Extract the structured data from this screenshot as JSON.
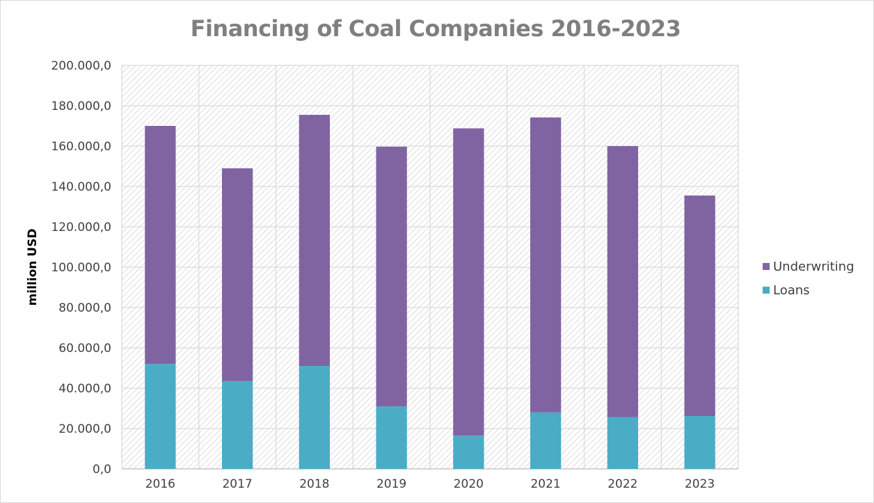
{
  "chart_data": {
    "type": "bar",
    "stacked": true,
    "title": "Financing of Coal Companies 2016-2023",
    "xlabel": "",
    "ylabel": "million USD",
    "categories": [
      "2016",
      "2017",
      "2018",
      "2019",
      "2020",
      "2021",
      "2022",
      "2023"
    ],
    "series": [
      {
        "name": "Loans",
        "color": "#4bacc6",
        "values": [
          52000,
          43500,
          51000,
          31000,
          16500,
          28000,
          25700,
          26200
        ]
      },
      {
        "name": "Underwriting",
        "color": "#8064a2",
        "values": [
          118000,
          105500,
          124500,
          128700,
          152300,
          146200,
          134300,
          109300
        ]
      }
    ],
    "ylim": [
      0,
      200000
    ],
    "yticks": [
      "0,0",
      "20.000,0",
      "40.000,0",
      "60.000,0",
      "80.000,0",
      "100.000,0",
      "120.000,0",
      "140.000,0",
      "160.000,0",
      "180.000,0",
      "200.000,0"
    ],
    "grid": true,
    "legend_position": "right"
  }
}
